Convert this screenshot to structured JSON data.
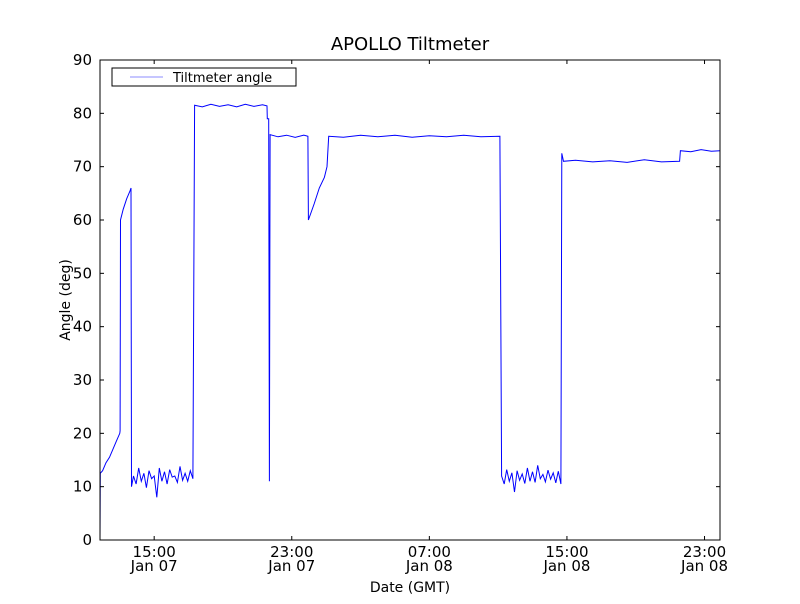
{
  "chart_data": {
    "type": "line",
    "title": "APOLLO Tiltmeter",
    "xlabel": "Date (GMT)",
    "ylabel": "Angle (deg)",
    "x_units": "hours since Jan 07 00:00 GMT",
    "xlim": [
      11.85,
      47.9
    ],
    "ylim": [
      0,
      90
    ],
    "yticks": [
      0,
      10,
      20,
      30,
      40,
      50,
      60,
      70,
      80,
      90
    ],
    "xticks": [
      {
        "value": 15,
        "time": "15:00",
        "date": "Jan 07"
      },
      {
        "value": 23,
        "time": "23:00",
        "date": "Jan 07"
      },
      {
        "value": 31,
        "time": "07:00",
        "date": "Jan 08"
      },
      {
        "value": 39,
        "time": "15:00",
        "date": "Jan 08"
      },
      {
        "value": 47,
        "time": "23:00",
        "date": "Jan 08"
      }
    ],
    "grid": false,
    "legend": {
      "position": "top-left",
      "entries": [
        "Tiltmeter angle"
      ]
    },
    "series": [
      {
        "name": "Tiltmeter angle",
        "color": "#0000ff",
        "points": [
          [
            11.85,
            0
          ],
          [
            11.87,
            12.5
          ],
          [
            12.0,
            13
          ],
          [
            12.2,
            14.5
          ],
          [
            12.4,
            15.5
          ],
          [
            12.6,
            17
          ],
          [
            12.8,
            18.5
          ],
          [
            13.0,
            20
          ],
          [
            13.02,
            20.5
          ],
          [
            13.04,
            60
          ],
          [
            13.2,
            62
          ],
          [
            13.4,
            64
          ],
          [
            13.6,
            65.5
          ],
          [
            13.65,
            66
          ],
          [
            13.68,
            10
          ],
          [
            13.8,
            12
          ],
          [
            13.95,
            10.5
          ],
          [
            14.1,
            13.5
          ],
          [
            14.25,
            11
          ],
          [
            14.4,
            12.5
          ],
          [
            14.55,
            9.8
          ],
          [
            14.7,
            13
          ],
          [
            14.85,
            11.5
          ],
          [
            15.0,
            12
          ],
          [
            15.15,
            8
          ],
          [
            15.3,
            13.5
          ],
          [
            15.45,
            11
          ],
          [
            15.6,
            12.8
          ],
          [
            15.75,
            10.5
          ],
          [
            15.9,
            13.2
          ],
          [
            16.05,
            11.8
          ],
          [
            16.2,
            12
          ],
          [
            16.35,
            10.8
          ],
          [
            16.5,
            13.8
          ],
          [
            16.65,
            11.2
          ],
          [
            16.8,
            12.5
          ],
          [
            16.95,
            11
          ],
          [
            17.1,
            13
          ],
          [
            17.25,
            11.5
          ],
          [
            17.35,
            81.5
          ],
          [
            17.8,
            81.2
          ],
          [
            18.3,
            81.7
          ],
          [
            18.8,
            81.3
          ],
          [
            19.3,
            81.6
          ],
          [
            19.8,
            81.2
          ],
          [
            20.3,
            81.7
          ],
          [
            20.8,
            81.3
          ],
          [
            21.3,
            81.6
          ],
          [
            21.56,
            81.4
          ],
          [
            21.58,
            79
          ],
          [
            21.66,
            79
          ],
          [
            21.7,
            11
          ],
          [
            21.74,
            76
          ],
          [
            22.2,
            75.6
          ],
          [
            22.7,
            75.9
          ],
          [
            23.2,
            75.5
          ],
          [
            23.7,
            75.9
          ],
          [
            23.94,
            75.7
          ],
          [
            23.97,
            60
          ],
          [
            24.3,
            63
          ],
          [
            24.6,
            66
          ],
          [
            24.9,
            68
          ],
          [
            25.05,
            70
          ],
          [
            25.15,
            75.7
          ],
          [
            26,
            75.5
          ],
          [
            27,
            75.9
          ],
          [
            28,
            75.6
          ],
          [
            29,
            75.9
          ],
          [
            30,
            75.5
          ],
          [
            31,
            75.8
          ],
          [
            32,
            75.6
          ],
          [
            33,
            75.9
          ],
          [
            34,
            75.6
          ],
          [
            35.1,
            75.7
          ],
          [
            35.2,
            12
          ],
          [
            35.35,
            10.5
          ],
          [
            35.5,
            13.2
          ],
          [
            35.65,
            11
          ],
          [
            35.8,
            12.6
          ],
          [
            35.95,
            9
          ],
          [
            36.1,
            13
          ],
          [
            36.25,
            11.2
          ],
          [
            36.4,
            12.4
          ],
          [
            36.55,
            10.6
          ],
          [
            36.7,
            13.5
          ],
          [
            36.85,
            11
          ],
          [
            37.0,
            12.8
          ],
          [
            37.15,
            10.8
          ],
          [
            37.3,
            14
          ],
          [
            37.45,
            11.5
          ],
          [
            37.6,
            12.3
          ],
          [
            37.75,
            10.9
          ],
          [
            37.9,
            13.1
          ],
          [
            38.05,
            11.4
          ],
          [
            38.2,
            12.6
          ],
          [
            38.35,
            10.7
          ],
          [
            38.5,
            12.9
          ],
          [
            38.65,
            10.5
          ],
          [
            38.7,
            72.5
          ],
          [
            38.8,
            71
          ],
          [
            39.5,
            71.2
          ],
          [
            40.5,
            70.9
          ],
          [
            41.5,
            71.1
          ],
          [
            42.5,
            70.8
          ],
          [
            43.5,
            71.3
          ],
          [
            44.5,
            70.9
          ],
          [
            45.55,
            71
          ],
          [
            45.6,
            73
          ],
          [
            46.2,
            72.8
          ],
          [
            46.8,
            73.2
          ],
          [
            47.4,
            72.9
          ],
          [
            47.9,
            73
          ]
        ]
      }
    ]
  }
}
